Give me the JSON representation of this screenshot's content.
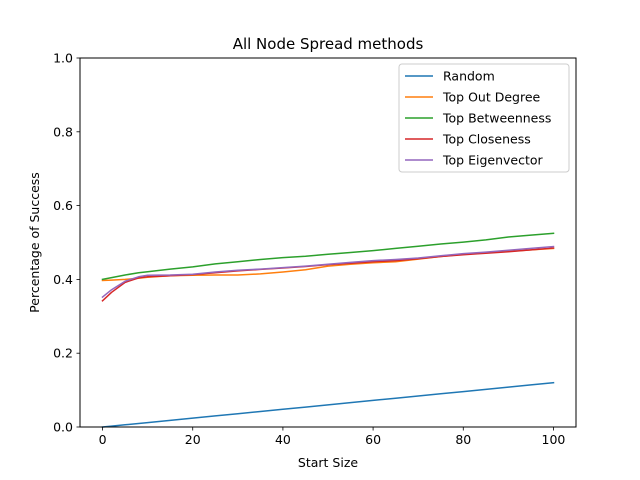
{
  "chart_data": {
    "type": "line",
    "title": "All Node Spread methods",
    "xlabel": "Start Size",
    "ylabel": "Percentage of Success",
    "xlim": [
      -5,
      105
    ],
    "ylim": [
      0,
      1.0
    ],
    "xticks": [
      "0",
      "20",
      "40",
      "60",
      "80",
      "100"
    ],
    "yticks": [
      "0.0",
      "0.2",
      "0.4",
      "0.6",
      "0.8",
      "1.0"
    ],
    "grid": false,
    "legend_position": "top-right",
    "x": [
      0,
      2,
      5,
      8,
      10,
      15,
      20,
      25,
      30,
      35,
      40,
      45,
      50,
      55,
      60,
      65,
      70,
      75,
      80,
      85,
      90,
      95,
      100
    ],
    "series": [
      {
        "name": "Random",
        "color": "#1f77b4",
        "values": [
          0.0,
          0.0024,
          0.006,
          0.0096,
          0.012,
          0.018,
          0.024,
          0.03,
          0.036,
          0.042,
          0.048,
          0.054,
          0.06,
          0.066,
          0.072,
          0.078,
          0.084,
          0.09,
          0.096,
          0.102,
          0.108,
          0.114,
          0.12
        ]
      },
      {
        "name": "Top Out Degree",
        "color": "#ff7f0e",
        "values": [
          0.397,
          0.398,
          0.4,
          0.403,
          0.406,
          0.41,
          0.411,
          0.412,
          0.412,
          0.415,
          0.42,
          0.426,
          0.436,
          0.441,
          0.445,
          0.448,
          0.455,
          0.462,
          0.468,
          0.472,
          0.476,
          0.48,
          0.484
        ]
      },
      {
        "name": "Top Betweenness",
        "color": "#2ca02c",
        "values": [
          0.4,
          0.405,
          0.412,
          0.418,
          0.421,
          0.428,
          0.434,
          0.442,
          0.448,
          0.454,
          0.459,
          0.463,
          0.468,
          0.473,
          0.478,
          0.484,
          0.49,
          0.496,
          0.501,
          0.507,
          0.515,
          0.52,
          0.525
        ]
      },
      {
        "name": "Top Closeness",
        "color": "#d62728",
        "values": [
          0.342,
          0.365,
          0.392,
          0.404,
          0.407,
          0.41,
          0.413,
          0.418,
          0.423,
          0.427,
          0.431,
          0.435,
          0.44,
          0.444,
          0.448,
          0.451,
          0.456,
          0.462,
          0.467,
          0.471,
          0.475,
          0.48,
          0.485
        ]
      },
      {
        "name": "Top Eigenvector",
        "color": "#9467bd",
        "values": [
          0.352,
          0.372,
          0.395,
          0.407,
          0.411,
          0.412,
          0.414,
          0.42,
          0.425,
          0.428,
          0.432,
          0.436,
          0.441,
          0.446,
          0.451,
          0.454,
          0.458,
          0.464,
          0.47,
          0.474,
          0.479,
          0.484,
          0.489
        ]
      }
    ]
  }
}
